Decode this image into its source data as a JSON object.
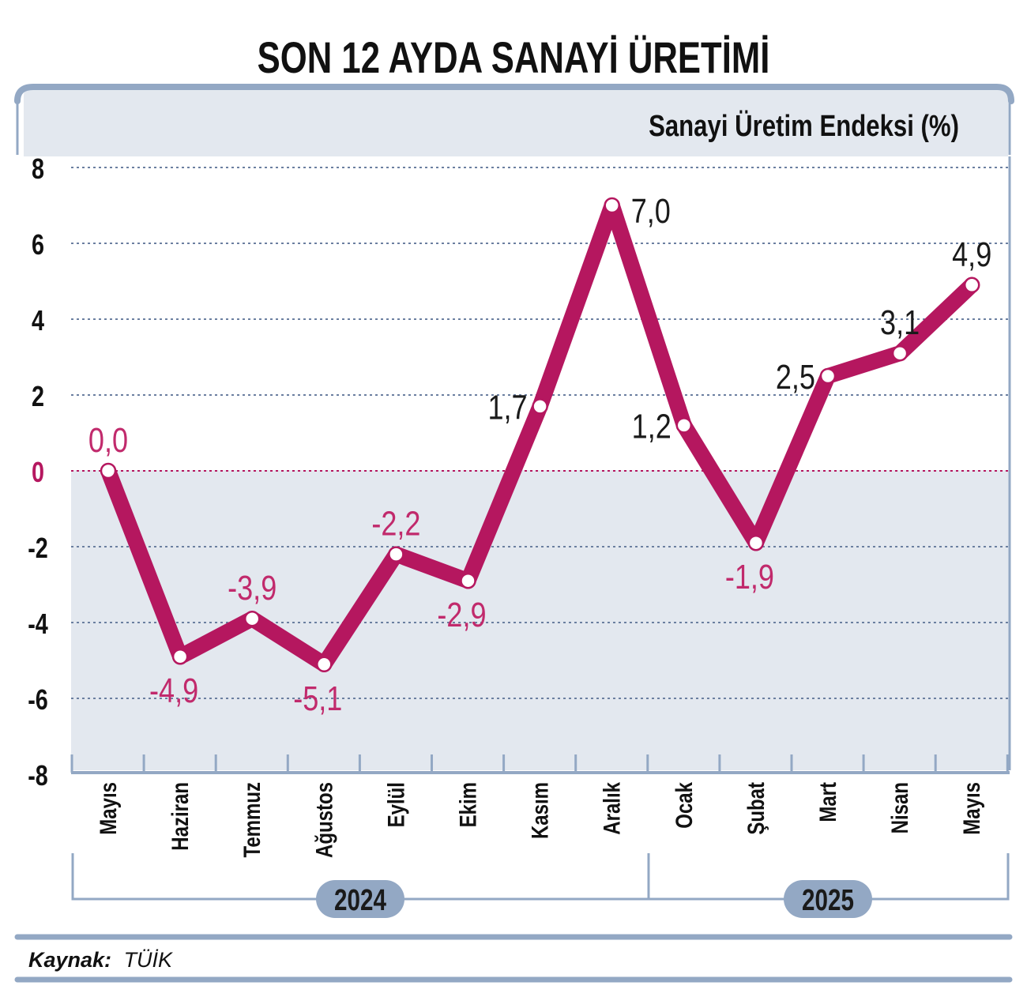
{
  "title": "SON 12 AYDA SANAYİ ÜRETİMİ",
  "source": {
    "label": "Kaynak:",
    "value": "TÜİK"
  },
  "colors": {
    "line": "#b5175f",
    "negative_label": "#c12a6c",
    "positive_label": "#1a1a1a",
    "band": "#e3e8ef",
    "accent": "#93a8c4",
    "grid": "#6b7fa0",
    "zero_line": "#b5175f",
    "year_pill": "#93a8c4"
  },
  "years": [
    {
      "label": "2024",
      "from_index": 0,
      "to_index": 7
    },
    {
      "label": "2025",
      "from_index": 8,
      "to_index": 12
    }
  ],
  "chart_data": {
    "type": "line",
    "title": "SON 12 AYDA SANAYİ ÜRETİMİ",
    "ylabel": "Sanayi Üretim Endeksi (%)",
    "xlabel": "",
    "ylim": [
      -8,
      8
    ],
    "yticks": [
      "8",
      "6",
      "4",
      "2",
      "0",
      "-2",
      "-4",
      "-6",
      "-8"
    ],
    "ytick_values": [
      8,
      6,
      4,
      2,
      0,
      -2,
      -4,
      -6,
      -8
    ],
    "categories": [
      "Mayıs",
      "Haziran",
      "Temmuz",
      "Ağustos",
      "Eylül",
      "Ekim",
      "Kasım",
      "Aralık",
      "Ocak",
      "Şubat",
      "Mart",
      "Nisan",
      "Mayıs"
    ],
    "values": [
      0.0,
      -4.9,
      -3.9,
      -5.1,
      -2.2,
      -2.9,
      1.7,
      7.0,
      1.2,
      -1.9,
      2.5,
      3.1,
      4.9
    ],
    "value_labels": [
      "0,0",
      "-4,9",
      "-3,9",
      "-5,1",
      "-2,2",
      "-2,9",
      "1,7",
      "7,0",
      "1,2",
      "-1,9",
      "2,5",
      "3,1",
      "4,9"
    ],
    "label_placement": [
      "above",
      "below",
      "above",
      "below",
      "above",
      "below",
      "left",
      "right",
      "left",
      "below",
      "left",
      "above",
      "above"
    ],
    "grid": true,
    "grid_style": "dotted",
    "zero_line": true
  }
}
